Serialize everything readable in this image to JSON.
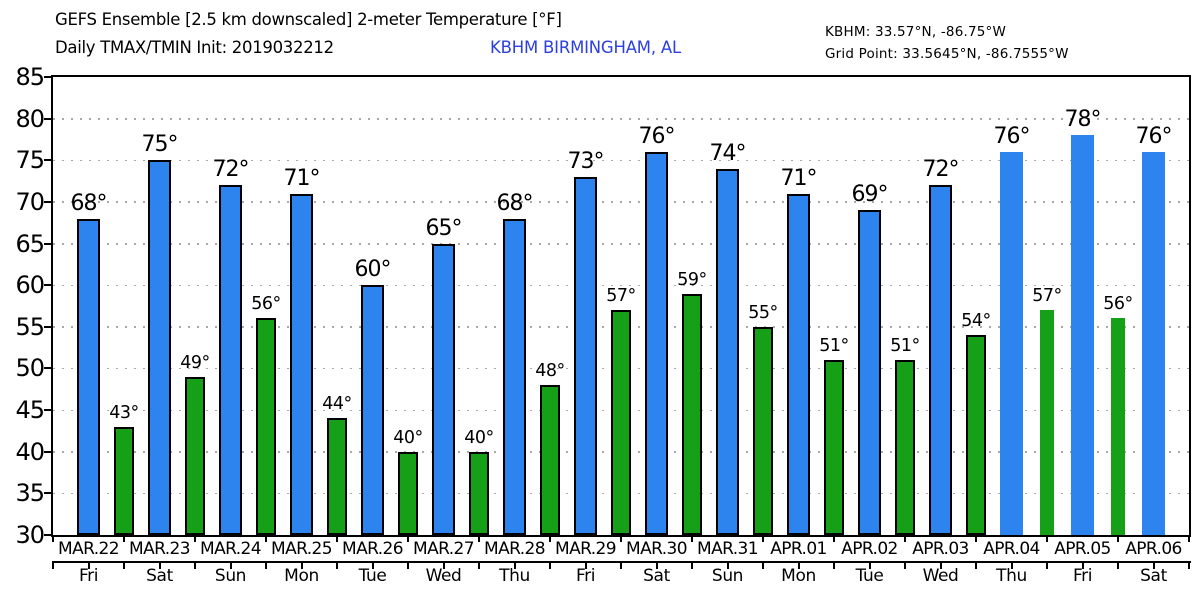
{
  "header": {
    "title_line1": "GEFS Ensemble [2.5 km downscaled] 2-meter Temperature [°F]",
    "title_line2": "Daily TMAX/TMIN Init: 2019032212",
    "station_name": "KBHM BIRMINGHAM, AL",
    "station_coords": "KBHM: 33.57°N, -86.75°W",
    "grid_point": "Grid Point: 33.5645°N, -86.7555°W"
  },
  "colors": {
    "tmax_bar": "#2e84ee",
    "tmin_bar": "#16a018",
    "bar_outline": "#000000",
    "grid_dots": "#a9a9a9",
    "axis": "#000000",
    "station_text": "#2c3fe0",
    "text": "#000000",
    "background": "#ffffff"
  },
  "chart_data": {
    "type": "bar",
    "title": "GEFS Ensemble [2.5 km downscaled] 2-meter Temperature [°F]",
    "subtitle": "Daily TMAX/TMIN Init: 2019032212",
    "station": "KBHM BIRMINGHAM, AL",
    "categories": [
      "MAR.22",
      "MAR.23",
      "MAR.24",
      "MAR.25",
      "MAR.26",
      "MAR.27",
      "MAR.28",
      "MAR.29",
      "MAR.30",
      "MAR.31",
      "APR.01",
      "APR.02",
      "APR.03",
      "APR.04",
      "APR.05",
      "APR.06"
    ],
    "weekday_labels": [
      "Fri",
      "Sat",
      "Sun",
      "Mon",
      "Tue",
      "Wed",
      "Thu",
      "Fri",
      "Sat",
      "Sun",
      "Mon",
      "Tue",
      "Wed",
      "Thu",
      "Fri",
      "Sat"
    ],
    "series": [
      {
        "name": "TMAX",
        "unit": "°F",
        "color": "#2e84ee",
        "outlined_count": 13,
        "values": [
          68,
          75,
          72,
          71,
          60,
          65,
          68,
          73,
          76,
          74,
          71,
          69,
          72,
          76,
          78,
          76
        ]
      },
      {
        "name": "TMIN",
        "unit": "°F",
        "color": "#16a018",
        "outlined_count": 13,
        "offset_days": 0.5,
        "values": [
          43,
          49,
          56,
          44,
          40,
          40,
          48,
          57,
          59,
          55,
          51,
          51,
          54,
          57,
          56
        ]
      }
    ],
    "xlabel": "",
    "ylabel": "",
    "ylim": [
      30,
      85
    ],
    "ytick_interval": 5,
    "grid": "horizontal-dotted",
    "legend": "none",
    "value_label_suffix": "°"
  }
}
